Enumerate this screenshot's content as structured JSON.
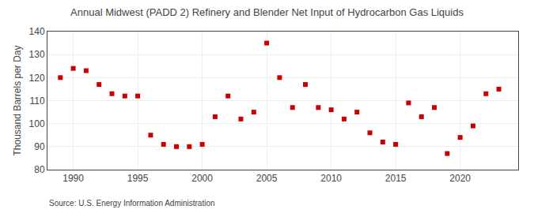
{
  "chart_data": {
    "type": "scatter",
    "title": "Annual Midwest (PADD 2) Refinery and Blender Net Input of Hydrocarbon Gas Liquids",
    "ylabel": "Thousand Barrels per Day",
    "annotations": [
      "Source: U.S. Energy Information Administration"
    ],
    "x": [
      1989,
      1990,
      1991,
      1992,
      1993,
      1994,
      1995,
      1996,
      1997,
      1998,
      1999,
      2000,
      2001,
      2002,
      2003,
      2004,
      2005,
      2006,
      2007,
      2008,
      2009,
      2010,
      2011,
      2012,
      2013,
      2014,
      2015,
      2016,
      2017,
      2018,
      2019,
      2020,
      2021,
      2022,
      2023
    ],
    "values": [
      120,
      124,
      123,
      117,
      113,
      112,
      112,
      95,
      91,
      90,
      90,
      91,
      103,
      112,
      102,
      105,
      135,
      120,
      107,
      117,
      107,
      106,
      102,
      105,
      96,
      92,
      91,
      109,
      103,
      107,
      87,
      94,
      99,
      113,
      115
    ],
    "color": "#cc0000",
    "marker": "square",
    "xlim": [
      1988,
      2024.5
    ],
    "ylim": [
      80,
      140
    ],
    "xticks": [
      1990,
      1995,
      2000,
      2005,
      2010,
      2015,
      2020
    ],
    "yticks": [
      80,
      90,
      100,
      110,
      120,
      130,
      140
    ],
    "grid": true
  }
}
